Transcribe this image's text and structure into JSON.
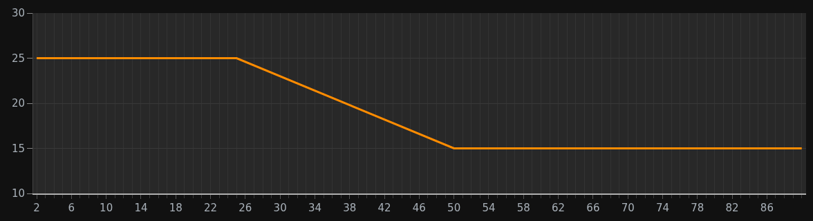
{
  "chart_data": {
    "type": "line",
    "x": [
      2,
      25,
      50,
      90
    ],
    "series": [
      {
        "color": "#ff8c00",
        "values": [
          25,
          25,
          15,
          15
        ]
      }
    ],
    "xlim": [
      1.6,
      90.5
    ],
    "xticks": [
      2,
      6,
      10,
      14,
      18,
      22,
      26,
      30,
      34,
      38,
      42,
      46,
      50,
      54,
      58,
      62,
      66,
      70,
      74,
      78,
      82,
      86
    ],
    "ylim": [
      10,
      30
    ],
    "yticks": [
      10,
      15,
      20,
      25,
      30
    ],
    "grid": true,
    "marker": "none",
    "line_style": "solid"
  }
}
